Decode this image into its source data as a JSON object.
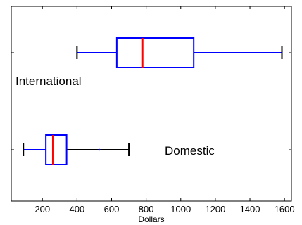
{
  "chart_data": {
    "type": "boxplot",
    "title": "",
    "xlabel": "Dollars",
    "ylabel": "",
    "xlim": [
      20,
      1640
    ],
    "xticks": [
      200,
      400,
      600,
      800,
      1000,
      1200,
      1400,
      1600
    ],
    "grid": false,
    "orientation": "horizontal",
    "series": [
      {
        "name": "International",
        "whisker_low": 400,
        "q1": 630,
        "median": 780,
        "q3": 1075,
        "whisker_high": 1585
      },
      {
        "name": "Domestic",
        "whisker_low": 90,
        "q1": 220,
        "median": 260,
        "q3": 340,
        "whisker_high": 700
      }
    ],
    "colors": {
      "box": "#0000ff",
      "median": "#ff0000",
      "whisker": "#0000ff",
      "whisker_right_domestic": "#000000"
    }
  }
}
